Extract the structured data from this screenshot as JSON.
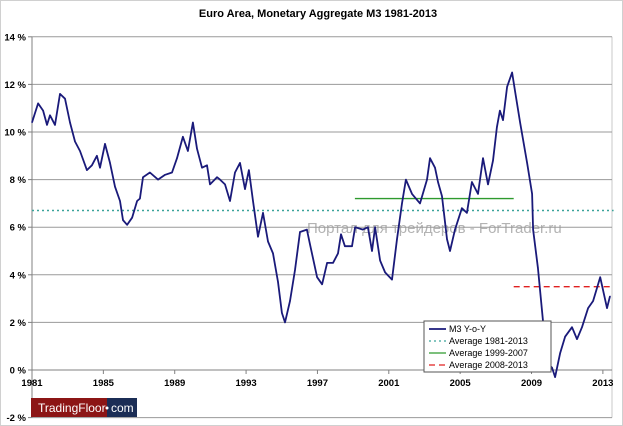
{
  "chart_data": {
    "type": "line",
    "title": "Euro Area, Monetary Aggregate M3 1981-2013",
    "xlabel": "",
    "ylabel": "",
    "xlim": [
      1981,
      2013.6
    ],
    "ylim": [
      -2,
      14
    ],
    "x_ticks": [
      "1981",
      "1985",
      "1989",
      "1993",
      "1997",
      "2001",
      "2005",
      "2009",
      "2013"
    ],
    "x_tick_values": [
      1981,
      1985,
      1989,
      1993,
      1997,
      2001,
      2005,
      2009,
      2013
    ],
    "y_ticks": [
      "14 %",
      "12 %",
      "10 %",
      "8 %",
      "6 %",
      "4 %",
      "2 %",
      "0 %",
      "-2 %"
    ],
    "y_tick_values": [
      14,
      12,
      10,
      8,
      6,
      4,
      2,
      0,
      -2
    ],
    "grid": true,
    "legend_position": "bottom-right",
    "series": [
      {
        "name": "M3 Y-o-Y",
        "color": "#1a1a7a",
        "style": "solid",
        "x": [
          1981.0,
          1981.34,
          1981.62,
          1981.84,
          1982.01,
          1982.29,
          1982.57,
          1982.85,
          1983.13,
          1983.41,
          1983.69,
          1984.08,
          1984.36,
          1984.64,
          1984.81,
          1985.09,
          1985.37,
          1985.65,
          1985.93,
          1986.1,
          1986.33,
          1986.61,
          1986.89,
          1987.05,
          1987.22,
          1987.61,
          1988.06,
          1988.46,
          1988.85,
          1989.13,
          1989.46,
          1989.74,
          1990.02,
          1990.25,
          1990.53,
          1990.81,
          1990.98,
          1991.37,
          1991.54,
          1991.82,
          1992.1,
          1992.38,
          1992.66,
          1992.94,
          1993.16,
          1993.39,
          1993.67,
          1993.95,
          1994.23,
          1994.51,
          1994.79,
          1995.01,
          1995.18,
          1995.46,
          1995.74,
          1996.02,
          1996.41,
          1996.58,
          1996.98,
          1997.26,
          1997.54,
          1997.87,
          1998.15,
          1998.32,
          1998.54,
          1998.94,
          1999.11,
          1999.55,
          1999.83,
          2000.06,
          2000.23,
          2000.51,
          2000.79,
          2001.18,
          2001.46,
          2001.74,
          2001.96,
          2002.3,
          2002.75,
          2003.14,
          2003.31,
          2003.59,
          2003.76,
          2003.98,
          2004.26,
          2004.43,
          2004.71,
          2005.1,
          2005.38,
          2005.66,
          2006.0,
          2006.28,
          2006.56,
          2006.84,
          2007.06,
          2007.23,
          2007.4,
          2007.63,
          2007.91,
          2008.08,
          2008.36,
          2008.75,
          2009.03,
          2009.09,
          2009.36,
          2009.64,
          2009.87,
          2010.15,
          2010.32,
          2010.6,
          2010.88,
          2011.27,
          2011.55,
          2011.83,
          2012.17,
          2012.45,
          2012.85,
          2013.23,
          2013.4
        ],
        "values": [
          10.4,
          11.2,
          10.9,
          10.3,
          10.7,
          10.3,
          11.6,
          11.4,
          10.4,
          9.6,
          9.2,
          8.4,
          8.6,
          9.0,
          8.5,
          9.5,
          8.7,
          7.7,
          7.1,
          6.3,
          6.1,
          6.4,
          7.1,
          7.2,
          8.1,
          8.3,
          8.0,
          8.2,
          8.3,
          8.9,
          9.8,
          9.2,
          10.4,
          9.3,
          8.5,
          8.6,
          7.8,
          8.1,
          8.0,
          7.8,
          7.1,
          8.3,
          8.7,
          7.6,
          8.4,
          7.1,
          5.6,
          6.6,
          5.4,
          4.9,
          3.7,
          2.4,
          2.0,
          2.9,
          4.2,
          5.8,
          5.9,
          5.3,
          3.9,
          3.6,
          4.5,
          4.5,
          4.9,
          5.7,
          5.2,
          5.2,
          6.0,
          5.9,
          6.0,
          5.0,
          6.0,
          4.6,
          4.1,
          3.8,
          5.5,
          7.0,
          8.0,
          7.4,
          7.0,
          8.0,
          8.9,
          8.5,
          7.9,
          7.3,
          5.5,
          5.0,
          5.9,
          6.8,
          6.6,
          7.9,
          7.4,
          8.9,
          7.8,
          8.8,
          10.2,
          10.9,
          10.5,
          11.9,
          12.5,
          11.7,
          10.4,
          8.7,
          7.4,
          5.9,
          4.3,
          2.1,
          0.3,
          0.1,
          -0.3,
          0.7,
          1.4,
          1.8,
          1.3,
          1.8,
          2.6,
          2.9,
          3.9,
          2.6,
          3.1
        ]
      },
      {
        "name": "Average 1981-2013",
        "color": "#3aa39a",
        "style": "dotted",
        "x": [
          1981,
          2013.6
        ],
        "values": [
          6.7,
          6.7
        ]
      },
      {
        "name": "Average 1999-2007",
        "color": "#2e9a2e",
        "style": "solid",
        "x": [
          1999.1,
          2008.0
        ],
        "values": [
          7.2,
          7.2
        ]
      },
      {
        "name": "Average 2008-2013",
        "color": "#e02020",
        "style": "dashed",
        "x": [
          2008.0,
          2013.6
        ],
        "values": [
          3.5,
          3.5
        ]
      }
    ]
  },
  "watermark": "Портал для трейдеров - ForTrader.ru",
  "logo": {
    "left": "TradingFloor",
    "right": "com",
    "left_color": "#8c1515",
    "right_color": "#1b2d55"
  }
}
